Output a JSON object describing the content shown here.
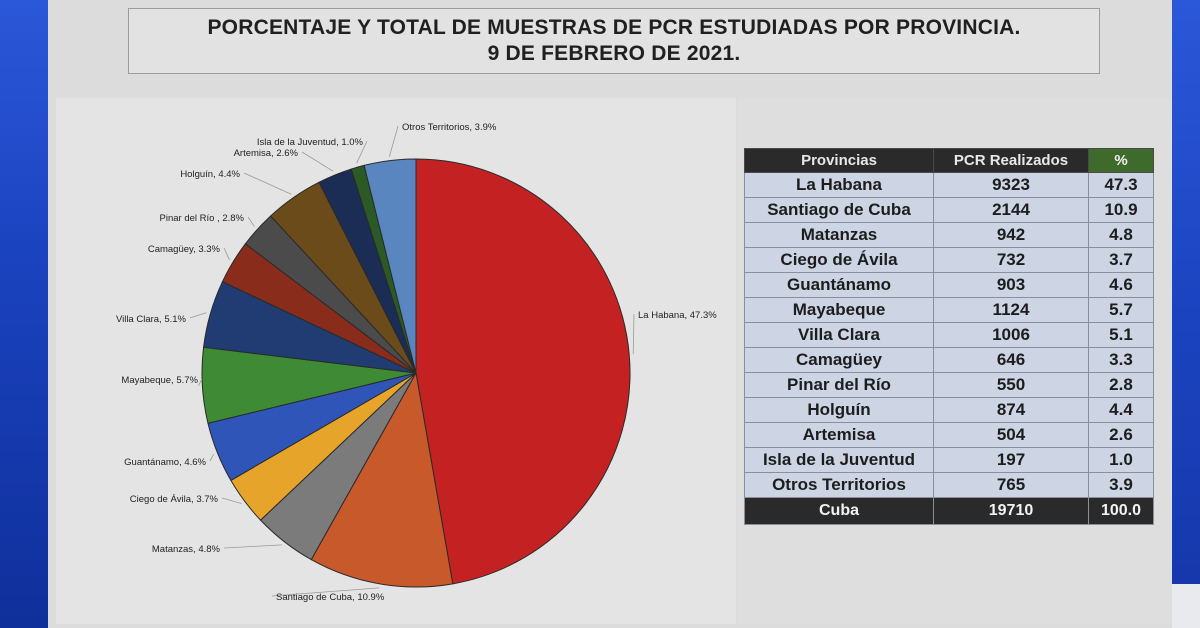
{
  "title": {
    "line1": "PORCENTAJE Y TOTAL DE MUESTRAS DE PCR ESTUDIADAS POR PROVINCIA.",
    "line2": "9 DE FEBRERO DE 2021."
  },
  "chart_data": {
    "type": "pie",
    "slices": [
      {
        "label": "La Habana, 47.3%",
        "value": 47.3,
        "color": "#c42222"
      },
      {
        "label": "Santiago de Cuba, 10.9%",
        "value": 10.9,
        "color": "#c8592a"
      },
      {
        "label": "Matanzas, 4.8%",
        "value": 4.8,
        "color": "#7b7b7b"
      },
      {
        "label": "Ciego de Ávila, 3.7%",
        "value": 3.7,
        "color": "#e6a52a"
      },
      {
        "label": "Guantánamo, 4.6%",
        "value": 4.6,
        "color": "#2f55b8"
      },
      {
        "label": "Mayabeque, 5.7%",
        "value": 5.7,
        "color": "#3f8a34"
      },
      {
        "label": "Villa Clara, 5.1%",
        "value": 5.1,
        "color": "#203c72"
      },
      {
        "label": "Camagüey, 3.3%",
        "value": 3.3,
        "color": "#8a2c1c"
      },
      {
        "label": "Pinar del Río , 2.8%",
        "value": 2.8,
        "color": "#4b4b4b"
      },
      {
        "label": "Holguín, 4.4%",
        "value": 4.4,
        "color": "#6b4b1a"
      },
      {
        "label": "Artemisa, 2.6%",
        "value": 2.6,
        "color": "#1b2c55"
      },
      {
        "label": "Isla de la Juventud, 1.0%",
        "value": 1.0,
        "color": "#2c5a26"
      },
      {
        "label": "Otros Territorios, 3.9%",
        "value": 3.9,
        "color": "#5a86bf"
      }
    ]
  },
  "table": {
    "headers": [
      "Provincias",
      "PCR Realizados",
      "%"
    ],
    "rows": [
      [
        "La Habana",
        "9323",
        "47.3"
      ],
      [
        "Santiago de Cuba",
        "2144",
        "10.9"
      ],
      [
        "Matanzas",
        "942",
        "4.8"
      ],
      [
        "Ciego de Ávila",
        "732",
        "3.7"
      ],
      [
        "Guantánamo",
        "903",
        "4.6"
      ],
      [
        "Mayabeque",
        "1124",
        "5.7"
      ],
      [
        "Villa Clara",
        "1006",
        "5.1"
      ],
      [
        "Camagüey",
        "646",
        "3.3"
      ],
      [
        "Pinar del Río",
        "550",
        "2.8"
      ],
      [
        "Holguín",
        "874",
        "4.4"
      ],
      [
        "Artemisa",
        "504",
        "2.6"
      ],
      [
        "Isla de la Juventud",
        "197",
        "1.0"
      ],
      [
        "Otros Territorios",
        "765",
        "3.9"
      ]
    ],
    "total": [
      "Cuba",
      "19710",
      "100.0"
    ]
  }
}
